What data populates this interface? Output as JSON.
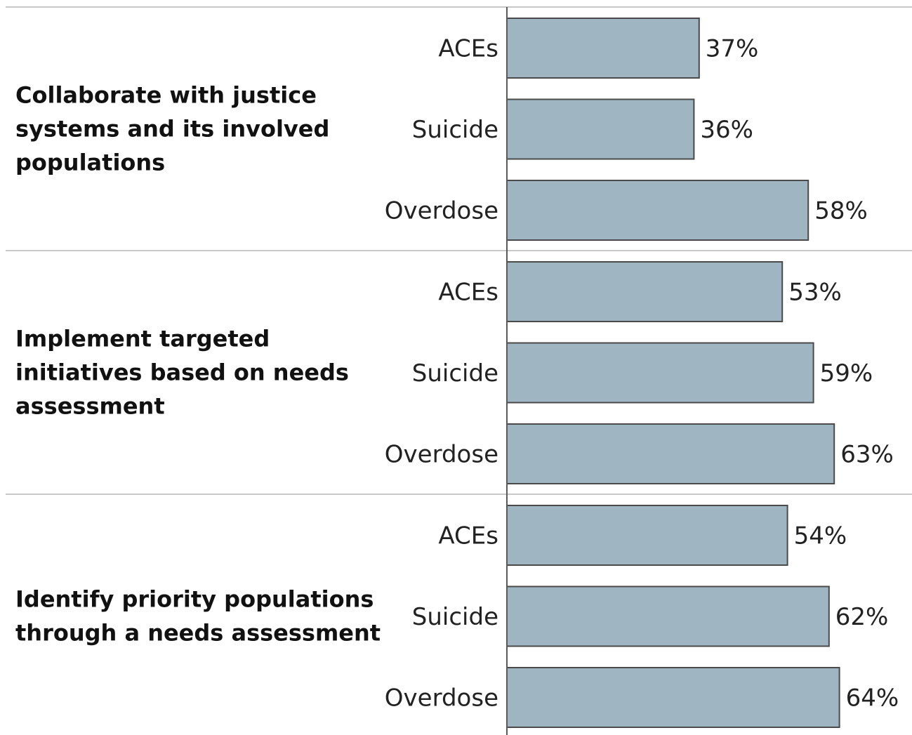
{
  "chart_data": {
    "type": "bar",
    "orientation": "horizontal",
    "value_format": "percent",
    "xlim": [
      0,
      100
    ],
    "groups": [
      {
        "name": "Collaborate with justice systems and its involved populations",
        "label_lines": [
          "Collaborate with justice",
          "systems and its involved",
          "populations"
        ],
        "bars": [
          {
            "category": "ACEs",
            "value": 37,
            "label": "37%"
          },
          {
            "category": "Suicide",
            "value": 36,
            "label": "36%"
          },
          {
            "category": "Overdose",
            "value": 58,
            "label": "58%"
          }
        ]
      },
      {
        "name": "Implement targeted initiatives based on needs assessment",
        "label_lines": [
          "Implement targeted",
          "initiatives based on needs",
          "assessment"
        ],
        "bars": [
          {
            "category": "ACEs",
            "value": 53,
            "label": "53%"
          },
          {
            "category": "Suicide",
            "value": 59,
            "label": "59%"
          },
          {
            "category": "Overdose",
            "value": 63,
            "label": "63%"
          }
        ]
      },
      {
        "name": "Identify priority populations through a needs assessment",
        "label_lines": [
          "Identify priority populations",
          "through a needs assessment"
        ],
        "bars": [
          {
            "category": "ACEs",
            "value": 54,
            "label": "54%"
          },
          {
            "category": "Suicide",
            "value": 62,
            "label": "62%"
          },
          {
            "category": "Overdose",
            "value": 64,
            "label": "64%"
          }
        ]
      }
    ],
    "colors": {
      "bar_fill": "#a0b5c2",
      "bar_stroke": "#4a4a4a"
    },
    "grid": false,
    "legend": "none"
  }
}
